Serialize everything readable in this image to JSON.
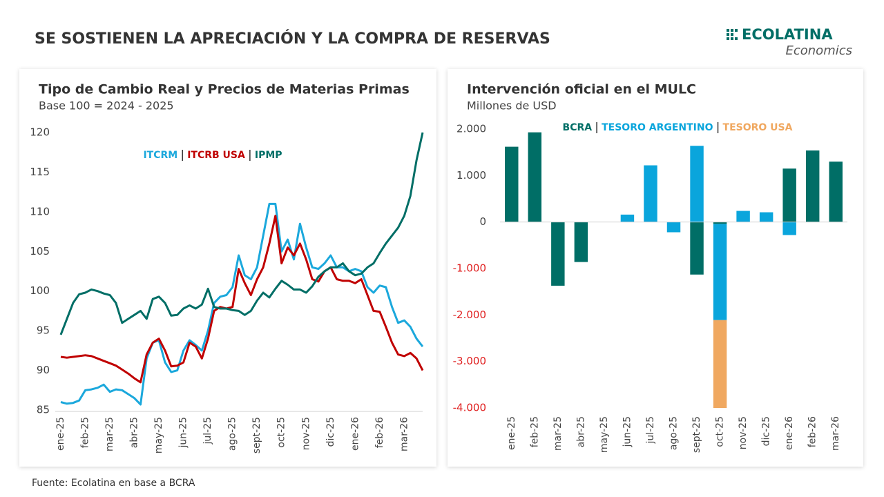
{
  "header": {
    "title": "SE SOSTIENEN LA APRECIACIÓN Y LA COMPRA DE RESERVAS",
    "logo": {
      "name": "ECOLATINA",
      "tagline": "Economics"
    }
  },
  "chart_data": [
    {
      "type": "line",
      "title": "Tipo de Cambio Real y Precios de Materias Primas",
      "subtitle": "Base 100 = 2024 - 2025",
      "categories": [
        "ene-25",
        null,
        null,
        null,
        "feb-25",
        null,
        null,
        null,
        "mar-25",
        null,
        null,
        null,
        "abr-25",
        null,
        null,
        null,
        "may-25",
        null,
        null,
        null,
        "jun-25",
        null,
        null,
        null,
        "jul-25",
        null,
        null,
        null,
        "ago-25",
        null,
        null,
        null,
        "sept-25",
        null,
        null,
        null,
        "oct-25",
        null,
        null,
        null,
        "nov-25",
        null,
        null,
        null,
        "dic-25",
        null,
        null,
        null,
        "ene-26",
        null,
        null,
        null,
        "feb-26",
        null,
        null,
        null,
        "mar-26",
        null,
        null,
        null
      ],
      "series": [
        {
          "name": "ITCRM",
          "color": "#1ba8dc",
          "values": [
            86,
            85.8,
            85.9,
            86.2,
            87.5,
            87.6,
            87.8,
            88.2,
            87.3,
            87.6,
            87.5,
            87.0,
            86.5,
            85.7,
            91.5,
            93.5,
            93.8,
            91,
            89.8,
            90,
            92.5,
            93.8,
            93.2,
            92.5,
            95,
            98.5,
            99.3,
            99.5,
            100.5,
            104.5,
            102,
            101.5,
            103,
            107,
            111,
            111,
            105,
            106.5,
            104,
            108.5,
            105.5,
            103,
            102.8,
            103.5,
            104.5,
            103,
            103,
            102.5,
            102.8,
            102.5,
            100.5,
            99.8,
            100.7,
            100.5,
            98,
            96,
            96.3,
            95.5,
            94,
            93
          ]
        },
        {
          "name": "ITCRB USA",
          "color": "#c00000",
          "values": [
            91.7,
            91.6,
            91.7,
            91.8,
            91.9,
            91.8,
            91.5,
            91.2,
            90.9,
            90.6,
            90.1,
            89.6,
            89.0,
            88.5,
            92,
            93.5,
            94,
            92.5,
            90.5,
            90.6,
            91,
            93.5,
            93,
            91.5,
            94,
            97.5,
            98,
            97.8,
            98,
            102.8,
            101,
            99.5,
            101.5,
            103,
            106,
            109.5,
            103.5,
            105.5,
            104.5,
            106,
            104,
            101.5,
            101.2,
            102.5,
            103,
            101.5,
            101.3,
            101.3,
            101,
            101.5,
            99.5,
            97.5,
            97.4,
            95.5,
            93.5,
            92,
            91.8,
            92.2,
            91.5,
            90
          ]
        },
        {
          "name": "IPMP",
          "color": "#006e66",
          "values": [
            94.5,
            96.5,
            98.5,
            99.6,
            99.8,
            100.2,
            100,
            99.7,
            99.5,
            98.5,
            96,
            96.5,
            97,
            97.5,
            96.5,
            99,
            99.3,
            98.5,
            96.9,
            97,
            97.8,
            98.2,
            97.8,
            98.3,
            100.3,
            98,
            97.8,
            97.8,
            97.6,
            97.5,
            97,
            97.5,
            98.8,
            99.8,
            99.2,
            100.3,
            101.3,
            100.8,
            100.2,
            100.2,
            99.8,
            100.6,
            101.8,
            102.5,
            103,
            103,
            103.5,
            102.5,
            102,
            102.2,
            103,
            103.5,
            104.8,
            106,
            107,
            108,
            109.5,
            112,
            116.5,
            120
          ]
        }
      ],
      "ylim": [
        85,
        120
      ],
      "yticks": [
        85,
        90,
        95,
        100,
        105,
        110,
        115,
        120
      ],
      "grid": false
    },
    {
      "type": "stacked-bar",
      "title": "Intervención oficial en el MULC",
      "subtitle": "Millones de USD",
      "categories": [
        "ene-25",
        "feb-25",
        "mar-25",
        "abr-25",
        "may-25",
        "jun-25",
        "jul-25",
        "ago-25",
        "sept-25",
        "oct-25",
        "nov-25",
        "dic-25",
        "ene-26",
        "feb-26",
        "mar-26"
      ],
      "series": [
        {
          "name": "BCRA",
          "color": "#006e66",
          "values": [
            1620,
            1930,
            -1370,
            -860,
            0,
            0,
            0,
            0,
            -1130,
            -40,
            0,
            0,
            1150,
            1540,
            1300
          ]
        },
        {
          "name": "TESORO ARGENTINO",
          "color": "#0aa5dc",
          "values": [
            0,
            0,
            0,
            0,
            0,
            160,
            1220,
            -220,
            1640,
            -2070,
            240,
            210,
            -280,
            0,
            0
          ]
        },
        {
          "name": "TESORO USA",
          "color": "#f0a860",
          "values": [
            0,
            0,
            0,
            0,
            0,
            0,
            0,
            0,
            0,
            -1890,
            0,
            0,
            0,
            0,
            0
          ]
        }
      ],
      "ylim": [
        -4000,
        2000
      ],
      "yticks": [
        {
          "value": 2000,
          "label": "2.000"
        },
        {
          "value": 1000,
          "label": "1.000"
        },
        0,
        {
          "value": -1000,
          "label": "-1.000"
        },
        {
          "value": -2000,
          "label": "-2.000"
        },
        {
          "value": -3000,
          "label": "-3.000"
        },
        {
          "value": -4000,
          "label": "-4.000"
        }
      ],
      "grid": false
    }
  ],
  "footer": {
    "source": "Fuente: Ecolatina en base a BCRA"
  }
}
